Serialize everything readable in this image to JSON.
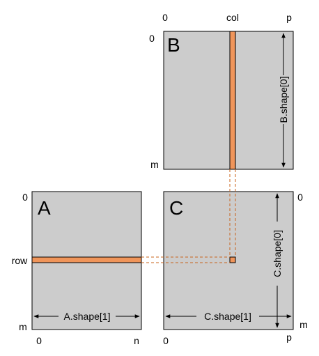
{
  "colors": {
    "matrix_fill": "#cccccc",
    "highlight": "#f0955a",
    "dashed_line": "#c8651e"
  },
  "matrix_B": {
    "name": "B",
    "top_left_label": "0",
    "col_label": "col",
    "right_label": "p",
    "row_zero_label": "0",
    "bottom_label": "m",
    "dimension_label": "B.shape[0]"
  },
  "matrix_A": {
    "name": "A",
    "top_label": "0",
    "row_label": "row",
    "bottom_label": "m",
    "bottom_left_label": "0",
    "bottom_right_label": "n",
    "dimension_label": "A.shape[1]"
  },
  "matrix_C": {
    "name": "C",
    "top_right_label": "0",
    "bottom_right_label": "m",
    "bottom_left_label": "0",
    "bottom_p_label": "p",
    "dimension_row_label": "C.shape[1]",
    "dimension_col_label": "C.shape[0]"
  }
}
